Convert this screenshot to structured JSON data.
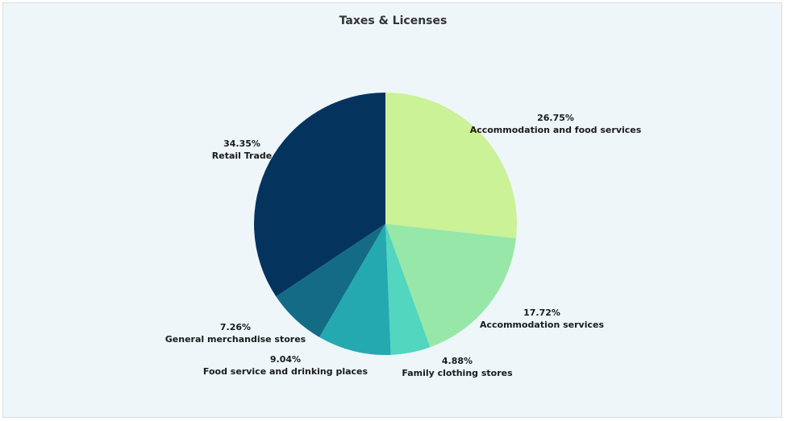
{
  "chart_data": {
    "type": "pie",
    "title": "Taxes & Licenses",
    "slices": [
      {
        "label": "Accommodation and food services",
        "value": 26.75,
        "display": "26.75%",
        "color": "#cbf296"
      },
      {
        "label": "Accommodation services",
        "value": 17.72,
        "display": "17.72%",
        "color": "#97e8a8"
      },
      {
        "label": "Family clothing stores",
        "value": 4.88,
        "display": "4.88%",
        "color": "#52d6bf"
      },
      {
        "label": "Food service and drinking places",
        "value": 9.04,
        "display": "9.04%",
        "color": "#24a9b1"
      },
      {
        "label": "General merchandise stores",
        "value": 7.26,
        "display": "7.26%",
        "color": "#136b85"
      },
      {
        "label": "Retail Trade",
        "value": 34.35,
        "display": "34.35%",
        "color": "#04345e"
      }
    ]
  }
}
